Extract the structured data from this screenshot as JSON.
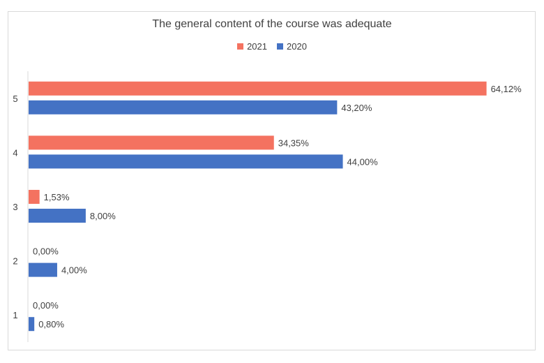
{
  "chart_data": {
    "type": "bar",
    "orientation": "horizontal",
    "title": "The general content of the course was adequate",
    "categories": [
      "5",
      "4",
      "3",
      "2",
      "1"
    ],
    "series": [
      {
        "name": "2021",
        "color": "#f47260",
        "values": [
          64.12,
          34.35,
          1.53,
          0.0,
          0.0
        ],
        "labels": [
          "64,12%",
          "34,35%",
          "1,53%",
          "0,00%",
          "0,00%"
        ]
      },
      {
        "name": "2020",
        "color": "#4472c4",
        "values": [
          43.2,
          44.0,
          8.0,
          4.0,
          0.8
        ],
        "labels": [
          "43,20%",
          "44,00%",
          "8,00%",
          "4,00%",
          "0,80%"
        ]
      }
    ],
    "xlim": [
      0,
      70
    ],
    "grid": false,
    "legend_position": "top"
  }
}
